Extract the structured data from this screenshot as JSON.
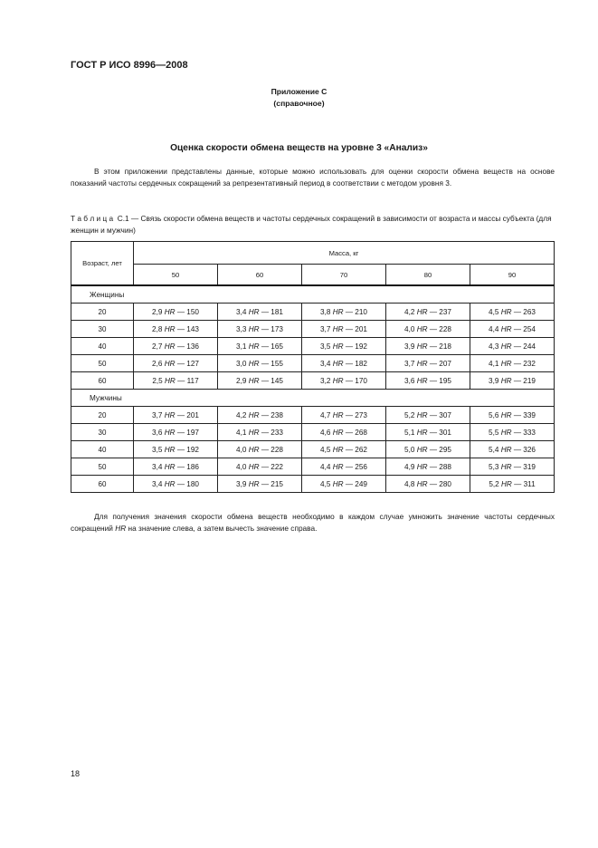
{
  "header": "ГОСТ Р ИСО 8996—2008",
  "appendix": {
    "name": "Приложение С",
    "type": "(справочное)"
  },
  "title": "Оценка скорости обмена веществ на уровне 3 «Анализ»",
  "intro": "В этом приложении представлены данные, которые можно использовать для оценки скорости обмена веществ на основе показаний частоты сердечных сокращений за репрезентативный период в соответствии с методом уровня 3.",
  "caption": "Т а б л и ц а  С.1 — Связь скорости обмена веществ и частоты сердечных сокращений в зависимости от возраста и массы субъекта (для женщин и мужчин)",
  "table": {
    "age_header": "Возраст, лет",
    "mass_header": "Масса, кг",
    "masses": [
      "50",
      "60",
      "70",
      "80",
      "90"
    ],
    "hr": "HR",
    "groups": [
      {
        "name": "Женщины",
        "rows": [
          {
            "age": "20",
            "cells": [
              [
                "2,9",
                "— 150"
              ],
              [
                "3,4",
                "— 181"
              ],
              [
                "3,8",
                "— 210"
              ],
              [
                "4,2",
                "— 237"
              ],
              [
                "4,5",
                "— 263"
              ]
            ]
          },
          {
            "age": "30",
            "cells": [
              [
                "2,8",
                "— 143"
              ],
              [
                "3,3",
                "— 173"
              ],
              [
                "3,7",
                "— 201"
              ],
              [
                "4,0",
                "— 228"
              ],
              [
                "4,4",
                "— 254"
              ]
            ]
          },
          {
            "age": "40",
            "cells": [
              [
                "2,7",
                "— 136"
              ],
              [
                "3,1",
                "— 165"
              ],
              [
                "3,5",
                "— 192"
              ],
              [
                "3,9",
                "— 218"
              ],
              [
                "4,3",
                "— 244"
              ]
            ]
          },
          {
            "age": "50",
            "cells": [
              [
                "2,6",
                "— 127"
              ],
              [
                "3,0",
                "— 155"
              ],
              [
                "3,4",
                "— 182"
              ],
              [
                "3,7",
                "— 207"
              ],
              [
                "4,1",
                "— 232"
              ]
            ]
          },
          {
            "age": "60",
            "cells": [
              [
                "2,5",
                "— 117"
              ],
              [
                "2,9",
                "— 145"
              ],
              [
                "3,2",
                "— 170"
              ],
              [
                "3,6",
                "— 195"
              ],
              [
                "3,9",
                "— 219"
              ]
            ]
          }
        ]
      },
      {
        "name": "Мужчины",
        "rows": [
          {
            "age": "20",
            "cells": [
              [
                "3,7",
                "— 201"
              ],
              [
                "4,2",
                "— 238"
              ],
              [
                "4,7",
                "— 273"
              ],
              [
                "5,2",
                "— 307"
              ],
              [
                "5,6",
                "— 339"
              ]
            ]
          },
          {
            "age": "30",
            "cells": [
              [
                "3,6",
                "— 197"
              ],
              [
                "4,1",
                "— 233"
              ],
              [
                "4,6",
                "— 268"
              ],
              [
                "5,1",
                "— 301"
              ],
              [
                "5,5",
                "— 333"
              ]
            ]
          },
          {
            "age": "40",
            "cells": [
              [
                "3,5",
                "— 192"
              ],
              [
                "4,0",
                "— 228"
              ],
              [
                "4,5",
                "— 262"
              ],
              [
                "5,0",
                "— 295"
              ],
              [
                "5,4",
                "— 326"
              ]
            ]
          },
          {
            "age": "50",
            "cells": [
              [
                "3,4",
                "— 186"
              ],
              [
                "4,0",
                "— 222"
              ],
              [
                "4,4",
                "— 256"
              ],
              [
                "4,9",
                "— 288"
              ],
              [
                "5,3",
                "— 319"
              ]
            ]
          },
          {
            "age": "60",
            "cells": [
              [
                "3,4",
                "— 180"
              ],
              [
                "3,9",
                "— 215"
              ],
              [
                "4,5",
                "— 249"
              ],
              [
                "4,8",
                "— 280"
              ],
              [
                "5,2",
                "— 311"
              ]
            ]
          }
        ]
      }
    ]
  },
  "note": {
    "before": "Для получения значения скорости обмена веществ необходимо в каждом случае умножить значение частоты сердечных сокращений ",
    "symbol": "HR",
    "after": " на значение слева, а затем вычесть значение справа."
  },
  "page_number": "18"
}
